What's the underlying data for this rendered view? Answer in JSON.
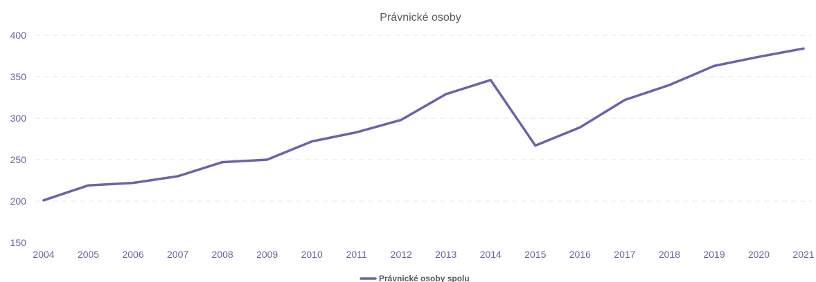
{
  "chart_data": {
    "type": "line",
    "title": "Právnické osoby",
    "xlabel": "",
    "ylabel": "",
    "x": [
      "2004",
      "2005",
      "2006",
      "2007",
      "2008",
      "2009",
      "2010",
      "2011",
      "2012",
      "2013",
      "2014",
      "2015",
      "2016",
      "2017",
      "2018",
      "2019",
      "2020",
      "2021"
    ],
    "ylim": [
      150,
      400
    ],
    "yticks": [
      150,
      200,
      250,
      300,
      350,
      400
    ],
    "grid": true,
    "legend_position": "bottom-center",
    "series": [
      {
        "name": "Právnické osoby spolu",
        "color": "#7160a8",
        "values": [
          201,
          219,
          222,
          230,
          247,
          250,
          272,
          283,
          298,
          329,
          346,
          267,
          289,
          322,
          340,
          363,
          374,
          384
        ]
      }
    ]
  }
}
